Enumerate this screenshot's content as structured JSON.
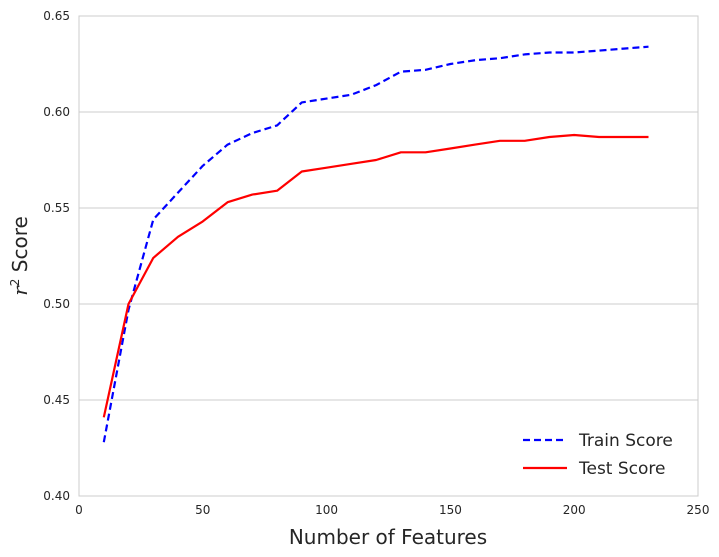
{
  "chart_data": {
    "type": "line",
    "title": "",
    "xlabel": "Number of Features",
    "ylabel_var": "r",
    "ylabel_sup": "2",
    "ylabel_suffix": " Score",
    "xlim": [
      0,
      250
    ],
    "ylim": [
      0.4,
      0.65
    ],
    "xticks": [
      0,
      50,
      100,
      150,
      200,
      250
    ],
    "xtick_labels": [
      "0",
      "50",
      "100",
      "150",
      "200",
      "250"
    ],
    "yticks": [
      0.4,
      0.45,
      0.5,
      0.55,
      0.6,
      0.65
    ],
    "ytick_labels": [
      "0.40",
      "0.45",
      "0.50",
      "0.55",
      "0.60",
      "0.65"
    ],
    "grid": "horizontal",
    "legend_position": "bottom-right",
    "x": [
      10,
      20,
      30,
      40,
      50,
      60,
      70,
      80,
      90,
      100,
      110,
      120,
      130,
      140,
      150,
      160,
      170,
      180,
      190,
      200,
      210,
      220,
      230
    ],
    "series": [
      {
        "name": "Train Score",
        "color": "#0000ff",
        "style": "dashed",
        "values": [
          0.428,
          0.497,
          0.544,
          0.558,
          0.572,
          0.583,
          0.589,
          0.593,
          0.605,
          0.607,
          0.609,
          0.614,
          0.621,
          0.622,
          0.625,
          0.627,
          0.628,
          0.63,
          0.631,
          0.631,
          0.632,
          0.633,
          0.634
        ]
      },
      {
        "name": "Test Score",
        "color": "#ff0000",
        "style": "solid",
        "values": [
          0.441,
          0.5,
          0.524,
          0.535,
          0.543,
          0.553,
          0.557,
          0.559,
          0.569,
          0.571,
          0.573,
          0.575,
          0.579,
          0.579,
          0.581,
          0.583,
          0.585,
          0.585,
          0.587,
          0.588,
          0.587,
          0.587,
          0.587
        ]
      }
    ]
  }
}
